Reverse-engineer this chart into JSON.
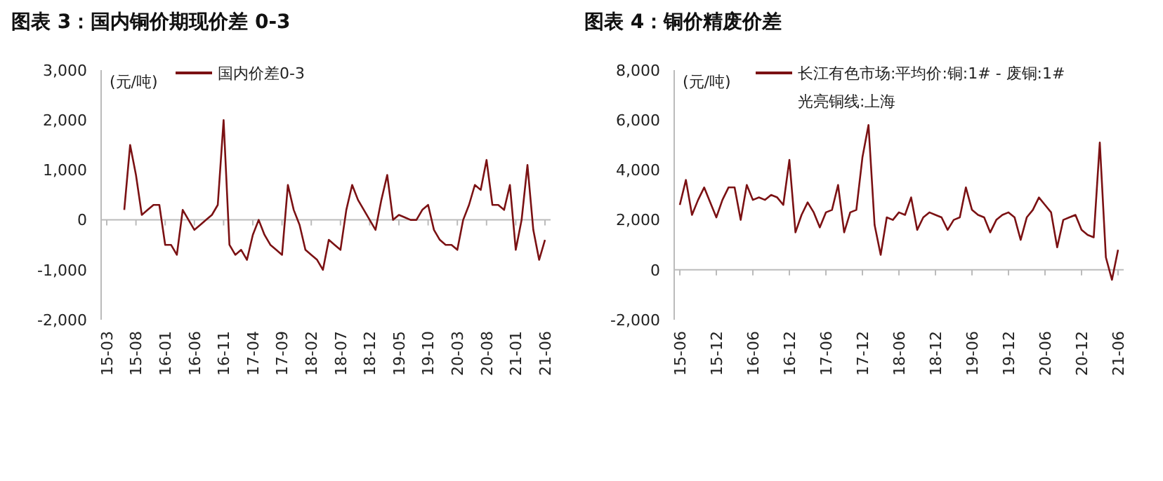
{
  "chart_data": [
    {
      "type": "line",
      "title": "图表 3：国内铜价期现价差 0-3",
      "ylabel": "(元/吨)",
      "legend": "top",
      "ylim": [
        -2000,
        3000
      ],
      "yticks": [
        {
          "value": -2000,
          "label": "-2,000"
        },
        {
          "value": -1000,
          "label": "-1,000"
        },
        0,
        {
          "value": 1000,
          "label": "1,000"
        },
        {
          "value": 2000,
          "label": "2,000"
        },
        {
          "value": 3000,
          "label": "3,000"
        }
      ],
      "categories": [
        "15-03",
        null,
        null,
        null,
        null,
        "15-08",
        null,
        null,
        null,
        null,
        "16-01",
        null,
        null,
        null,
        null,
        "16-06",
        null,
        null,
        null,
        null,
        "16-11",
        null,
        null,
        null,
        null,
        "17-04",
        null,
        null,
        null,
        null,
        "17-09",
        null,
        null,
        null,
        null,
        "18-02",
        null,
        null,
        null,
        null,
        "18-07",
        null,
        null,
        null,
        null,
        "18-12",
        null,
        null,
        null,
        null,
        "19-05",
        null,
        null,
        null,
        null,
        "19-10",
        null,
        null,
        null,
        null,
        "20-03",
        null,
        null,
        null,
        null,
        "20-08",
        null,
        null,
        null,
        null,
        "21-01",
        null,
        null,
        null,
        null,
        "21-06"
      ],
      "series": [
        {
          "name": "国内价差0-3",
          "color": "#7b1113",
          "values": [
            null,
            null,
            null,
            200,
            1500,
            900,
            100,
            200,
            300,
            300,
            -500,
            -500,
            -700,
            200,
            0,
            -200,
            -100,
            0,
            100,
            300,
            2000,
            -500,
            -700,
            -600,
            -800,
            -300,
            0,
            -300,
            -500,
            -600,
            -700,
            700,
            200,
            -100,
            -600,
            -700,
            -800,
            -1000,
            -400,
            -500,
            -600,
            200,
            700,
            400,
            200,
            0,
            -200,
            400,
            900,
            0,
            100,
            50,
            0,
            0,
            200,
            300,
            -200,
            -400,
            -500,
            -500,
            -600,
            0,
            300,
            700,
            600,
            1200,
            300,
            300,
            200,
            700,
            -600,
            0,
            1100,
            -200,
            -800,
            -400
          ]
        }
      ]
    },
    {
      "type": "line",
      "title": "图表 4：铜价精废价差",
      "ylabel": "(元/吨)",
      "legend": "top right",
      "ylim": [
        -2000,
        8000
      ],
      "yticks": [
        {
          "value": -2000,
          "label": "-2,000"
        },
        0,
        {
          "value": 2000,
          "label": "2,000"
        },
        {
          "value": 4000,
          "label": "4,000"
        },
        {
          "value": 6000,
          "label": "6,000"
        },
        {
          "value": 8000,
          "label": "8,000"
        }
      ],
      "categories": [
        "15-06",
        null,
        null,
        null,
        null,
        null,
        "15-12",
        null,
        null,
        null,
        null,
        null,
        "16-06",
        null,
        null,
        null,
        null,
        null,
        "16-12",
        null,
        null,
        null,
        null,
        null,
        "17-06",
        null,
        null,
        null,
        null,
        null,
        "17-12",
        null,
        null,
        null,
        null,
        null,
        "18-06",
        null,
        null,
        null,
        null,
        null,
        "18-12",
        null,
        null,
        null,
        null,
        null,
        "19-06",
        null,
        null,
        null,
        null,
        null,
        "19-12",
        null,
        null,
        null,
        null,
        null,
        "20-06",
        null,
        null,
        null,
        null,
        null,
        "20-12",
        null,
        null,
        null,
        null,
        null,
        "21-06"
      ],
      "series": [
        {
          "name": "长江有色市场:平均价:铜:1# - 废铜:1# 光亮铜线:上海",
          "color": "#7b1113",
          "values": [
            2600,
            3600,
            2200,
            2800,
            3300,
            2700,
            2100,
            2800,
            3300,
            3300,
            2000,
            3400,
            2800,
            2900,
            2800,
            3000,
            2900,
            2600,
            4400,
            1500,
            2200,
            2700,
            2300,
            1700,
            2300,
            2400,
            3400,
            1500,
            2300,
            2400,
            4500,
            5800,
            1800,
            600,
            2100,
            2000,
            2300,
            2200,
            2900,
            1600,
            2100,
            2300,
            2200,
            2100,
            1600,
            2000,
            2100,
            3300,
            2400,
            2200,
            2100,
            1500,
            2000,
            2200,
            2300,
            2100,
            1200,
            2100,
            2400,
            2900,
            2600,
            2300,
            900,
            2000,
            2100,
            2200,
            1600,
            1400,
            1300,
            5100,
            500,
            -400,
            800
          ]
        }
      ]
    }
  ]
}
